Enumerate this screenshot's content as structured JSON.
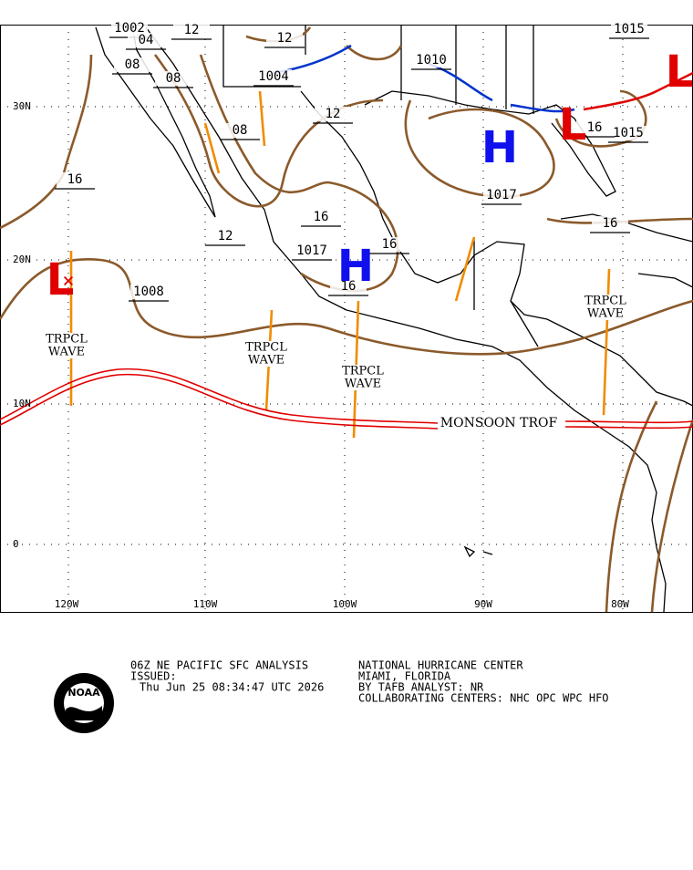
{
  "map": {
    "lat_labels": [
      "30N",
      "20N",
      "10N",
      "0"
    ],
    "lon_labels": [
      "120W",
      "110W",
      "100W",
      "90W",
      "80W"
    ],
    "isobar_labels": [
      "1002",
      "04",
      "12",
      "12",
      "08",
      "08",
      "1004",
      "08",
      "12",
      "16",
      "16",
      "12",
      "16",
      "1017",
      "16",
      "1008",
      "1010",
      "1017",
      "1015",
      "1015",
      "16",
      "16"
    ],
    "systems": [
      "H",
      "H",
      "L",
      "L",
      "L"
    ],
    "waves": [
      [
        "TRPCL",
        "WAVE"
      ],
      [
        "TRPCL",
        "WAVE"
      ],
      [
        "TRPCL",
        "WAVE"
      ],
      [
        "TRPCL",
        "WAVE"
      ]
    ],
    "monsoon": "MONSOON TROF"
  },
  "footer": {
    "logo": "NOAA",
    "left": [
      "06Z NE PACIFIC SFC ANALYSIS",
      "ISSUED:",
      "Thu Jun 25 08:34:47 UTC 2026"
    ],
    "right": [
      "NATIONAL HURRICANE CENTER",
      "MIAMI, FLORIDA",
      "BY TAFB ANALYST: NR",
      "COLLABORATING CENTERS: NHC OPC WPC HFO"
    ]
  }
}
